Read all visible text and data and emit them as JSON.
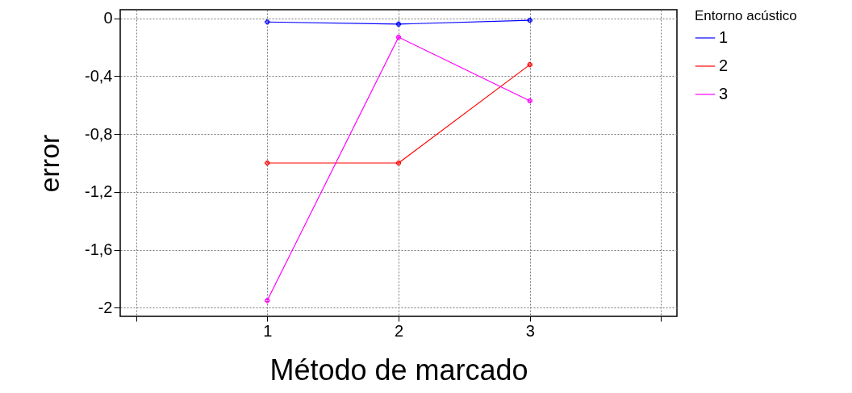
{
  "chart_data": {
    "type": "line",
    "xlabel": "Método de marcado",
    "ylabel": "error",
    "legend_title": "Entorno acústico",
    "x": [
      1,
      2,
      3
    ],
    "series": [
      {
        "name": "1",
        "color": "#0000ff",
        "values": [
          -0.025,
          -0.04,
          -0.013
        ]
      },
      {
        "name": "2",
        "color": "#ff0000",
        "values": [
          -1.0,
          -1.0,
          -0.32
        ]
      },
      {
        "name": "3",
        "color": "#ff00ff",
        "values": [
          -1.95,
          -0.13,
          -0.57
        ]
      }
    ],
    "xlim": [
      -0.12,
      4.12
    ],
    "xticks": [
      {
        "value": 0,
        "label": null
      },
      1,
      2,
      3,
      {
        "value": 4,
        "label": null
      }
    ],
    "ylim": [
      -2.06,
      0.06
    ],
    "yticks": [
      {
        "value": -2,
        "label": "-2"
      },
      {
        "value": -1.6,
        "label": "-1,6"
      },
      {
        "value": -1.2,
        "label": "-1,2"
      },
      {
        "value": -0.8,
        "label": "-0,8"
      },
      {
        "value": -0.4,
        "label": "-0,4"
      },
      {
        "value": 0,
        "label": "0"
      }
    ],
    "grid": true,
    "legend": "top right",
    "marker": "cross",
    "line_style": "solid"
  }
}
